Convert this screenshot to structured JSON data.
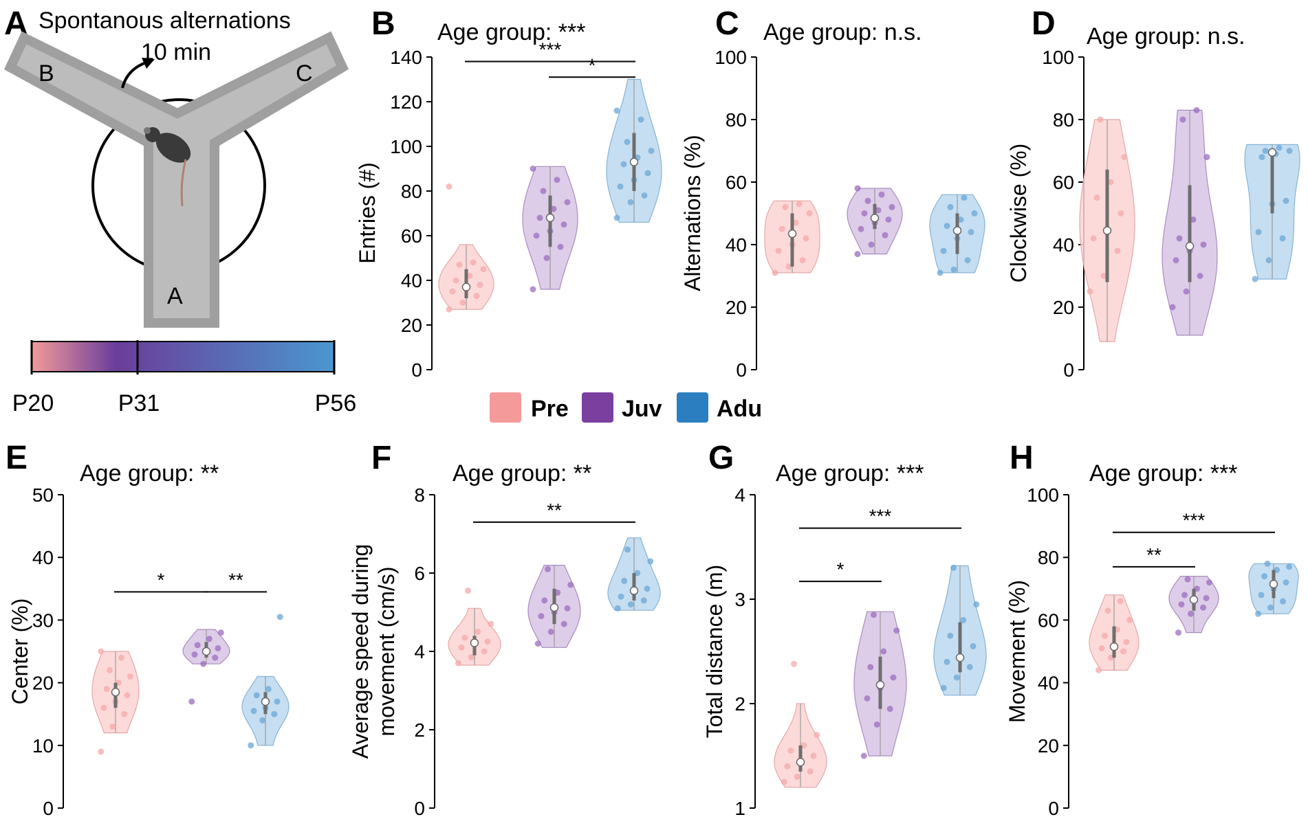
{
  "maze": {
    "title": "Spontanous alternations",
    "duration": "10 min",
    "arm_labels": [
      "A",
      "B",
      "C"
    ],
    "age_markers": [
      "P20",
      "P31",
      "P56"
    ],
    "gradient_colors": [
      "#f39a9a",
      "#6a3d9a",
      "#4a97cf"
    ]
  },
  "legend": [
    {
      "label": "Pre",
      "color": "#f59a9a"
    },
    {
      "label": "Juv",
      "color": "#7b3fa0"
    },
    {
      "label": "Adu",
      "color": "#2b7fc0"
    }
  ],
  "colors": {
    "pre": {
      "fill": "#fbd3d3",
      "edge": "#e6a6a6",
      "dot": "#f5a8a8"
    },
    "juv": {
      "fill": "#d8c4e4",
      "edge": "#a78bbf",
      "dot": "#9b6cc0"
    },
    "adu": {
      "fill": "#bcd8ee",
      "edge": "#86b3d6",
      "dot": "#6aa7d6"
    }
  },
  "chart_data": [
    {
      "id": "B",
      "letter": "B",
      "type": "violin",
      "title": "Age group: ***",
      "ylabel": "Entries (#)",
      "ylim": [
        0,
        140
      ],
      "yticks": [
        0,
        20,
        40,
        60,
        80,
        100,
        120,
        140
      ],
      "groups": [
        {
          "key": "pre",
          "name": "Pre",
          "min": 27,
          "max": 56,
          "q1": 32,
          "q3": 45,
          "median": 37,
          "points": [
            27,
            30,
            33,
            35,
            36,
            38,
            40,
            42,
            45,
            47,
            48,
            82
          ]
        },
        {
          "key": "juv",
          "name": "Juv",
          "min": 36,
          "max": 91,
          "q1": 55,
          "q3": 78,
          "median": 68,
          "points": [
            36,
            50,
            55,
            60,
            62,
            65,
            68,
            72,
            75,
            80,
            85,
            90
          ]
        },
        {
          "key": "adu",
          "name": "Adu",
          "min": 66,
          "max": 130,
          "q1": 80,
          "q3": 106,
          "median": 93,
          "points": [
            68,
            75,
            78,
            82,
            85,
            88,
            92,
            95,
            98,
            102,
            112,
            116
          ]
        }
      ],
      "comparisons": [
        {
          "from": 0,
          "to": 2,
          "y": 138,
          "label": "***"
        },
        {
          "from": 1,
          "to": 2,
          "y": 131,
          "label": "*"
        }
      ]
    },
    {
      "id": "C",
      "letter": "C",
      "type": "violin",
      "title": "Age group: n.s.",
      "ylabel": "Alternations (%)",
      "ylim": [
        0,
        100
      ],
      "yticks": [
        0,
        20,
        40,
        60,
        80,
        100
      ],
      "groups": [
        {
          "key": "pre",
          "name": "Pre",
          "min": 31,
          "max": 54,
          "q1": 33,
          "q3": 50,
          "median": 43.5,
          "points": [
            31,
            33,
            35,
            38,
            40,
            42,
            45,
            47,
            50,
            52,
            53
          ]
        },
        {
          "key": "juv",
          "name": "Juv",
          "min": 37,
          "max": 58,
          "q1": 45,
          "q3": 53,
          "median": 48.5,
          "points": [
            37,
            40,
            43,
            45,
            47,
            48,
            50,
            51,
            52,
            54,
            56,
            58
          ]
        },
        {
          "key": "adu",
          "name": "Adu",
          "min": 31,
          "max": 56,
          "q1": 37,
          "q3": 50,
          "median": 44.5,
          "points": [
            31,
            32,
            35,
            38,
            42,
            44,
            46,
            48,
            50,
            52,
            55
          ]
        }
      ],
      "comparisons": []
    },
    {
      "id": "D",
      "letter": "D",
      "type": "violin",
      "title": "Age group: n.s.",
      "ylabel": "Clockwise (%)",
      "ylim": [
        0,
        100
      ],
      "yticks": [
        0,
        20,
        40,
        60,
        80,
        100
      ],
      "groups": [
        {
          "key": "pre",
          "name": "Pre",
          "min": 9,
          "max": 80,
          "q1": 28,
          "q3": 64,
          "median": 44.5,
          "points": [
            25,
            30,
            38,
            42,
            45,
            50,
            55,
            60,
            68,
            80
          ]
        },
        {
          "key": "juv",
          "name": "Juv",
          "min": 11,
          "max": 83,
          "q1": 28,
          "q3": 59,
          "median": 39.5,
          "points": [
            20,
            25,
            30,
            35,
            38,
            40,
            42,
            48,
            68,
            80,
            83
          ]
        },
        {
          "key": "adu",
          "name": "Adu",
          "min": 29,
          "max": 72,
          "q1": 50,
          "q3": 70,
          "median": 69.5,
          "points": [
            29,
            35,
            42,
            44,
            53,
            54,
            68,
            69,
            70,
            70,
            71
          ]
        }
      ],
      "comparisons": []
    },
    {
      "id": "E",
      "letter": "E",
      "type": "violin",
      "title": "Age group: **",
      "ylabel": "Center (%)",
      "ylim": [
        0,
        50
      ],
      "yticks": [
        0,
        10,
        20,
        30,
        40,
        50
      ],
      "groups": [
        {
          "key": "pre",
          "name": "Pre",
          "min": 12,
          "max": 25,
          "q1": 16,
          "q3": 20,
          "median": 18.5,
          "points": [
            9,
            13,
            15,
            16,
            17,
            18,
            19,
            20,
            21,
            22,
            24,
            25
          ]
        },
        {
          "key": "juv",
          "name": "Juv",
          "min": 23,
          "max": 28.5,
          "q1": 24,
          "q3": 26.5,
          "median": 25,
          "points": [
            17,
            23,
            24,
            24.5,
            25,
            25.5,
            26,
            27,
            28
          ]
        },
        {
          "key": "adu",
          "name": "Adu",
          "min": 10,
          "max": 21,
          "q1": 15,
          "q3": 18.5,
          "median": 17,
          "points": [
            10,
            14,
            15,
            15.5,
            16,
            17,
            18,
            19,
            30.5
          ]
        }
      ],
      "comparisons": [
        {
          "from": 0,
          "to": 1,
          "y": 34.5,
          "label": "*"
        },
        {
          "from": 1,
          "to": 2,
          "y": 34.5,
          "label": "**"
        }
      ]
    },
    {
      "id": "F",
      "letter": "F",
      "type": "violin",
      "title": "Age group: **",
      "ylabel": [
        "Average speed during",
        "movement (cm/s)"
      ],
      "ylim": [
        0,
        8
      ],
      "yticks": [
        0,
        2,
        4,
        6,
        8
      ],
      "groups": [
        {
          "key": "pre",
          "name": "Pre",
          "min": 3.65,
          "max": 5.1,
          "q1": 3.9,
          "q3": 4.4,
          "median": 4.22,
          "points": [
            3.7,
            3.85,
            4.0,
            4.1,
            4.2,
            4.25,
            4.35,
            4.5,
            4.7,
            5.55
          ]
        },
        {
          "key": "juv",
          "name": "Juv",
          "min": 4.1,
          "max": 6.2,
          "q1": 4.7,
          "q3": 5.6,
          "median": 5.12,
          "points": [
            4.2,
            4.5,
            4.7,
            4.9,
            5.0,
            5.1,
            5.3,
            5.5,
            5.7,
            6.1
          ]
        },
        {
          "key": "adu",
          "name": "Adu",
          "min": 5.05,
          "max": 6.9,
          "q1": 5.3,
          "q3": 6.0,
          "median": 5.55,
          "points": [
            5.1,
            5.2,
            5.3,
            5.4,
            5.5,
            5.6,
            5.8,
            6.0,
            6.3,
            6.6
          ]
        }
      ],
      "comparisons": [
        {
          "from": 0,
          "to": 2,
          "y": 7.3,
          "label": "**"
        }
      ]
    },
    {
      "id": "G",
      "letter": "G",
      "type": "violin",
      "title": "Age group: ***",
      "ylabel": "Total distance (m)",
      "ylim": [
        1,
        4
      ],
      "yticks": [
        1,
        2,
        3,
        4
      ],
      "groups": [
        {
          "key": "pre",
          "name": "Pre",
          "min": 1.2,
          "max": 2.0,
          "q1": 1.35,
          "q3": 1.6,
          "median": 1.44,
          "points": [
            1.25,
            1.3,
            1.35,
            1.4,
            1.45,
            1.5,
            1.55,
            1.6,
            1.7,
            2.38
          ]
        },
        {
          "key": "juv",
          "name": "Juv",
          "min": 1.5,
          "max": 2.88,
          "q1": 1.95,
          "q3": 2.45,
          "median": 2.18,
          "points": [
            1.5,
            1.8,
            1.95,
            2.05,
            2.15,
            2.25,
            2.35,
            2.5,
            2.7,
            2.85
          ]
        },
        {
          "key": "adu",
          "name": "Adu",
          "min": 2.08,
          "max": 3.32,
          "q1": 2.3,
          "q3": 2.78,
          "median": 2.44,
          "points": [
            2.15,
            2.25,
            2.35,
            2.4,
            2.45,
            2.55,
            2.65,
            2.8,
            2.95,
            3.3
          ]
        }
      ],
      "comparisons": [
        {
          "from": 0,
          "to": 2,
          "y": 3.68,
          "label": "***"
        },
        {
          "from": 0,
          "to": 1,
          "y": 3.17,
          "label": "*"
        }
      ]
    },
    {
      "id": "H",
      "letter": "H",
      "type": "violin",
      "title": "Age group: ***",
      "ylabel": "Movement (%)",
      "ylim": [
        0,
        100
      ],
      "yticks": [
        0,
        20,
        40,
        60,
        80,
        100
      ],
      "groups": [
        {
          "key": "pre",
          "name": "Pre",
          "min": 44,
          "max": 68,
          "q1": 48,
          "q3": 58,
          "median": 51.5,
          "points": [
            44,
            48,
            50,
            51,
            52,
            53,
            55,
            57,
            60,
            63,
            66
          ]
        },
        {
          "key": "juv",
          "name": "Juv",
          "min": 56,
          "max": 74,
          "q1": 63,
          "q3": 70,
          "median": 66.5,
          "points": [
            56,
            62,
            64,
            65,
            66,
            67,
            68,
            70,
            72,
            73
          ]
        },
        {
          "key": "adu",
          "name": "Adu",
          "min": 62,
          "max": 78,
          "q1": 67,
          "q3": 76,
          "median": 71.5,
          "points": [
            62,
            64,
            66,
            68,
            70,
            72,
            74,
            76,
            77,
            78
          ]
        }
      ],
      "comparisons": [
        {
          "from": 0,
          "to": 2,
          "y": 88,
          "label": "***"
        },
        {
          "from": 0,
          "to": 1,
          "y": 77,
          "label": "**"
        }
      ]
    }
  ]
}
